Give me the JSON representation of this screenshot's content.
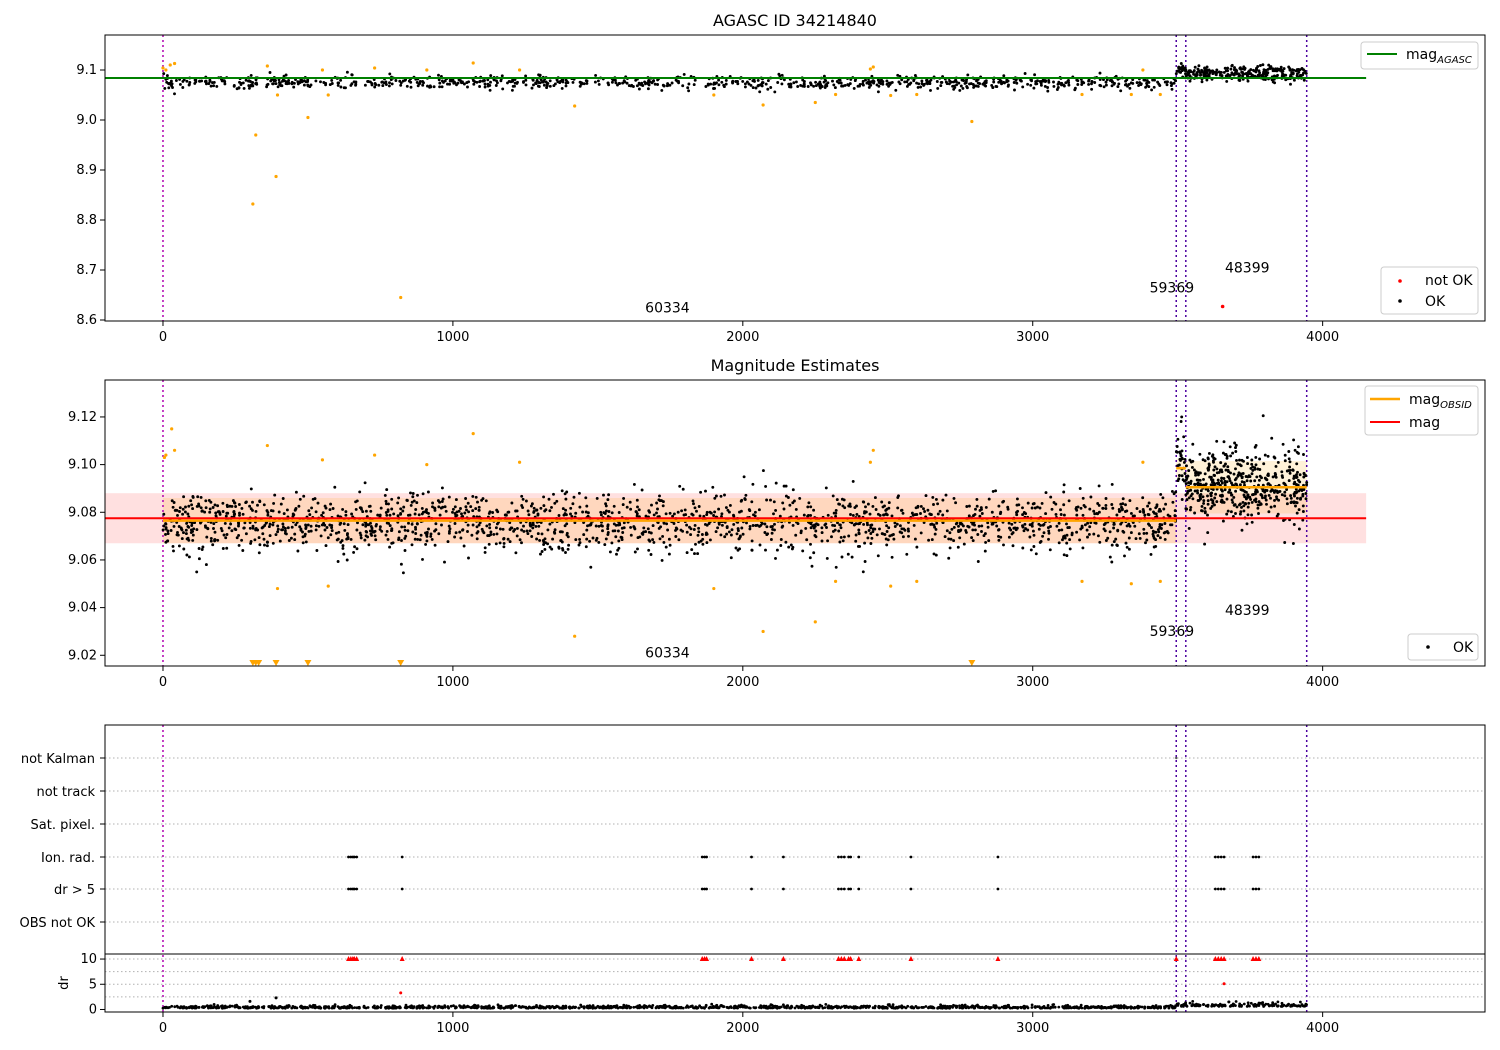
{
  "chart_data": [
    {
      "type": "scatter",
      "title": "AGASC ID 34214840",
      "xlim": [
        -200,
        4560
      ],
      "ylim": [
        8.598,
        9.17
      ],
      "xticks": [
        0,
        1000,
        2000,
        3000,
        4000
      ],
      "yticks": [
        8.6,
        8.7,
        8.8,
        8.9,
        9.0,
        9.1
      ],
      "yticks_labels": [
        "8.6",
        "8.7",
        "8.8",
        "8.9",
        "9.0",
        "9.1"
      ],
      "obsid_boundaries": [
        0,
        3495,
        3528,
        3945
      ],
      "obsid_labels": [
        {
          "text": "60334",
          "x": 1740,
          "y": 8.615
        },
        {
          "text": "59369",
          "x": 3480,
          "y": 8.655
        },
        {
          "text": "48399",
          "x": 3740,
          "y": 8.695
        }
      ],
      "reference_lines": [
        {
          "name": "mag_AGASC",
          "y": 9.084,
          "x": [
            -200,
            4150
          ],
          "color": "#008000"
        }
      ],
      "series": [
        {
          "name": "not OK",
          "color": "#ff0000"
        },
        {
          "name": "OK",
          "color": "#000000"
        }
      ],
      "bands": [
        {
          "x0": 0,
          "x1": 3495,
          "center": 9.075,
          "spread": 0.01,
          "points": 900
        },
        {
          "x0": 3495,
          "x1": 3528,
          "center": 9.1,
          "spread": 0.012,
          "points": 25
        },
        {
          "x0": 3528,
          "x1": 3945,
          "center": 9.092,
          "spread": 0.012,
          "points": 260
        }
      ],
      "orange_points": [
        [
          0,
          9.104
        ],
        [
          10,
          9.1
        ],
        [
          25,
          9.11
        ],
        [
          40,
          9.113
        ],
        [
          310,
          8.832
        ],
        [
          320,
          8.97
        ],
        [
          360,
          9.108
        ],
        [
          390,
          8.887
        ],
        [
          395,
          9.05
        ],
        [
          500,
          9.005
        ],
        [
          550,
          9.1
        ],
        [
          570,
          9.05
        ],
        [
          730,
          9.104
        ],
        [
          820,
          8.645
        ],
        [
          910,
          9.1
        ],
        [
          1070,
          9.114
        ],
        [
          1230,
          9.1
        ],
        [
          1420,
          9.028
        ],
        [
          1900,
          9.05
        ],
        [
          2070,
          9.03
        ],
        [
          2250,
          9.035
        ],
        [
          2320,
          9.051
        ],
        [
          2440,
          9.102
        ],
        [
          2450,
          9.106
        ],
        [
          2510,
          9.049
        ],
        [
          2600,
          9.051
        ],
        [
          2790,
          8.997
        ],
        [
          3170,
          9.051
        ],
        [
          3340,
          9.051
        ],
        [
          3380,
          9.1
        ],
        [
          3440,
          9.051
        ]
      ],
      "red_points": [
        [
          3655,
          8.627
        ]
      ],
      "legend": {
        "position": "top-right",
        "entries": [
          "mag_AGASC"
        ]
      },
      "legend2": {
        "position": "bottom-right",
        "entries": [
          "not OK",
          "OK"
        ]
      }
    },
    {
      "type": "scatter",
      "title": "Magnitude Estimates",
      "xlim": [
        -200,
        4560
      ],
      "ylim": [
        9.0155,
        9.1355
      ],
      "xticks": [
        0,
        1000,
        2000,
        3000,
        4000
      ],
      "yticks": [
        9.02,
        9.04,
        9.06,
        9.08,
        9.1,
        9.12
      ],
      "yticks_labels": [
        "9.02",
        "9.04",
        "9.06",
        "9.08",
        "9.10",
        "9.12"
      ],
      "obsid_boundaries": [
        0,
        3495,
        3528,
        3945
      ],
      "obsid_labels": [
        {
          "text": "60334",
          "x": 1740,
          "y": 9.019
        },
        {
          "text": "59369",
          "x": 3480,
          "y": 9.028
        },
        {
          "text": "48399",
          "x": 3740,
          "y": 9.037
        }
      ],
      "mag": {
        "name": "mag",
        "value": 9.0775,
        "sigma": 0.0105,
        "x": [
          -200,
          4150
        ],
        "color": "#ff0000"
      },
      "mag_obsid": [
        {
          "x0": 0,
          "x1": 3495,
          "value": 9.0765,
          "sigma": 0.0095
        },
        {
          "x0": 3495,
          "x1": 3528,
          "value": 9.0985,
          "sigma": 0.004
        },
        {
          "x0": 3528,
          "x1": 3945,
          "value": 9.0905,
          "sigma": 0.011
        }
      ],
      "bands": [
        {
          "x0": 0,
          "x1": 3495,
          "center": 9.0755,
          "spread": 0.0095,
          "points": 1900
        },
        {
          "x0": 3495,
          "x1": 3528,
          "center": 9.103,
          "spread": 0.011,
          "points": 30
        },
        {
          "x0": 3528,
          "x1": 3945,
          "center": 9.091,
          "spread": 0.012,
          "points": 500
        }
      ],
      "orange_points": [
        [
          5,
          9.103
        ],
        [
          10,
          9.104
        ],
        [
          30,
          9.115
        ],
        [
          40,
          9.106
        ],
        [
          310,
          9.017
        ],
        [
          320,
          9.017
        ],
        [
          330,
          9.017
        ],
        [
          360,
          9.108
        ],
        [
          390,
          9.017
        ],
        [
          395,
          9.048
        ],
        [
          500,
          9.017
        ],
        [
          550,
          9.102
        ],
        [
          570,
          9.049
        ],
        [
          730,
          9.104
        ],
        [
          820,
          9.017
        ],
        [
          910,
          9.1
        ],
        [
          1070,
          9.113
        ],
        [
          1230,
          9.101
        ],
        [
          1420,
          9.028
        ],
        [
          1900,
          9.048
        ],
        [
          2070,
          9.03
        ],
        [
          2250,
          9.034
        ],
        [
          2320,
          9.051
        ],
        [
          2440,
          9.101
        ],
        [
          2450,
          9.106
        ],
        [
          2510,
          9.049
        ],
        [
          2600,
          9.051
        ],
        [
          2790,
          9.017
        ],
        [
          3170,
          9.051
        ],
        [
          3340,
          9.05
        ],
        [
          3380,
          9.101
        ],
        [
          3440,
          9.051
        ]
      ],
      "series": [
        {
          "name": "OK",
          "color": "#000000"
        }
      ],
      "legend": {
        "position": "top-right",
        "entries": [
          "mag_OBSID",
          "mag"
        ]
      },
      "legend2": {
        "position": "bottom-right",
        "entries": [
          "OK"
        ]
      }
    },
    {
      "type": "scatter",
      "title": "",
      "xlim": [
        -200,
        4560
      ],
      "xticks": [
        0,
        1000,
        2000,
        3000,
        4000
      ],
      "categories": [
        "not Kalman",
        "not track",
        "Sat. pixel.",
        "Ion. rad.",
        "dr > 5",
        "OBS not OK"
      ],
      "obsid_boundaries": [
        0,
        3495,
        3528,
        3945
      ],
      "flag_times": [
        640,
        648,
        655,
        660,
        668,
        825,
        1860,
        1868,
        1875,
        2030,
        2140,
        2330,
        2340,
        2350,
        2365,
        2372,
        2400,
        2580,
        2880,
        3630,
        3640,
        3650,
        3660,
        3760,
        3770,
        3780
      ],
      "not_kalman_times": [
        3495
      ],
      "dr": {
        "ylabel": "dr",
        "ylim": [
          -0.5,
          11
        ],
        "yticks": [
          0,
          5,
          10
        ],
        "yticks_labels": [
          "0",
          "5",
          "10"
        ],
        "outliers": [
          [
            300,
            1.6
          ],
          [
            390,
            2.3
          ],
          [
            820,
            3.3
          ],
          [
            3660,
            5.1
          ]
        ],
        "clipped_marker_value": 10
      }
    }
  ]
}
